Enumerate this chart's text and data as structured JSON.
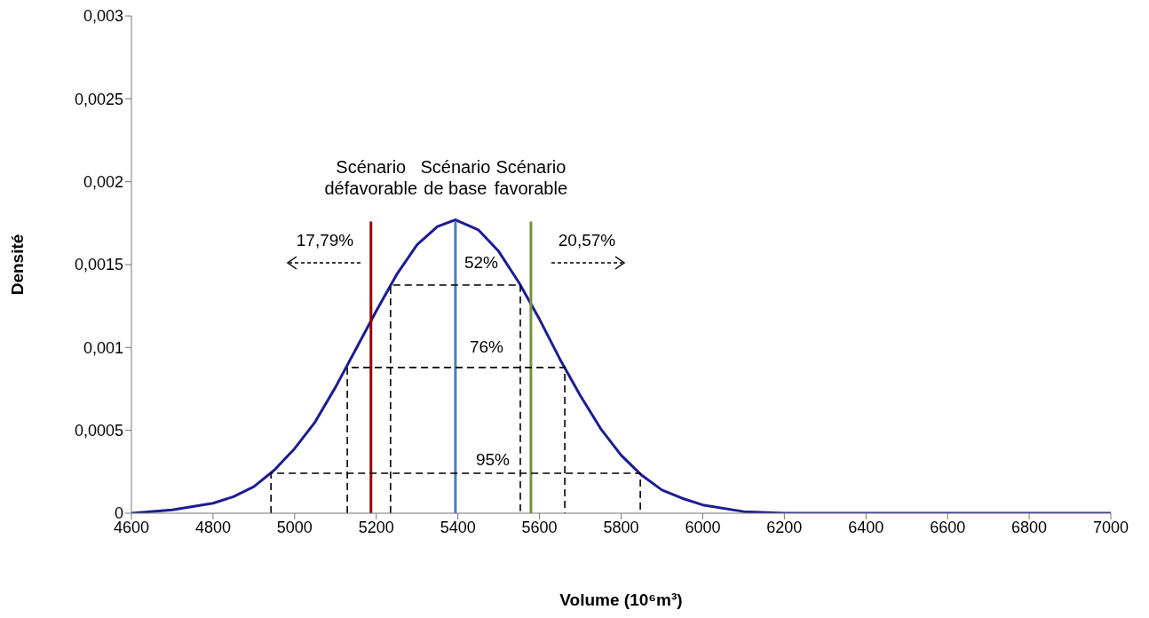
{
  "chart_data": {
    "type": "line",
    "xlabel": "Volume (10⁶m³)",
    "ylabel": "Densité",
    "xlim": [
      4600,
      7000
    ],
    "xticks": [
      4600,
      4800,
      5000,
      5200,
      5400,
      5600,
      5800,
      6000,
      6200,
      6400,
      6600,
      6800,
      7000
    ],
    "ylim": [
      0,
      0.003
    ],
    "yticks": [
      {
        "value": 0,
        "label": "0"
      },
      {
        "value": 0.0005,
        "label": "0,0005"
      },
      {
        "value": 0.001,
        "label": "0,001"
      },
      {
        "value": 0.0015,
        "label": "0,0015"
      },
      {
        "value": 0.002,
        "label": "0,002"
      },
      {
        "value": 0.0025,
        "label": "0,0025"
      },
      {
        "value": 0.003,
        "label": "0,003"
      }
    ],
    "series": [
      {
        "color": "#1c1c94",
        "x": [
          4600,
          4700,
          4800,
          4850,
          4900,
          4950,
          5000,
          5050,
          5100,
          5150,
          5200,
          5250,
          5300,
          5350,
          5394,
          5450,
          5500,
          5550,
          5600,
          5650,
          5700,
          5750,
          5800,
          5850,
          5900,
          5950,
          6000,
          6100,
          6200,
          6400,
          7000
        ],
        "values": [
          0,
          2e-05,
          6e-05,
          0.0001,
          0.00016,
          0.00026,
          0.00039,
          0.00055,
          0.00076,
          0.00099,
          0.00122,
          0.00144,
          0.00162,
          0.00173,
          0.00177,
          0.00171,
          0.00158,
          0.00139,
          0.00117,
          0.00093,
          0.00071,
          0.00051,
          0.00035,
          0.00023,
          0.00014,
          9e-05,
          5e-05,
          1e-05,
          0,
          0,
          0
        ]
      },
      {
        "name": "Scénario défavorable",
        "color": "#990000",
        "x": [
          5187,
          5187
        ],
        "values": [
          0,
          0.00176
        ]
      },
      {
        "name": "Scénario de base",
        "color": "#4a7ebb",
        "x": [
          5394,
          5394
        ],
        "values": [
          0,
          0.00176
        ]
      },
      {
        "name": "Scénario favorable",
        "color": "#77933c",
        "x": [
          5579,
          5579
        ],
        "values": [
          0,
          0.00176
        ]
      },
      {
        "color": "#000000",
        "line_style": "dashed",
        "x": [
          5235,
          5235,
          5553,
          5553
        ],
        "values": [
          0,
          0.001377,
          0.001377,
          0
        ]
      },
      {
        "color": "#000000",
        "line_style": "dashed",
        "x": [
          5129,
          5129,
          5662,
          5662
        ],
        "values": [
          0,
          0.000879,
          0.000879,
          0
        ]
      },
      {
        "color": "#000000",
        "line_style": "dashed",
        "x": [
          4942,
          4942,
          5847,
          5847
        ],
        "values": [
          0,
          0.000241,
          0.000241,
          0
        ]
      }
    ],
    "annotations": [
      "17,79%",
      "20,57%",
      "52%",
      "76%",
      "95%"
    ]
  }
}
